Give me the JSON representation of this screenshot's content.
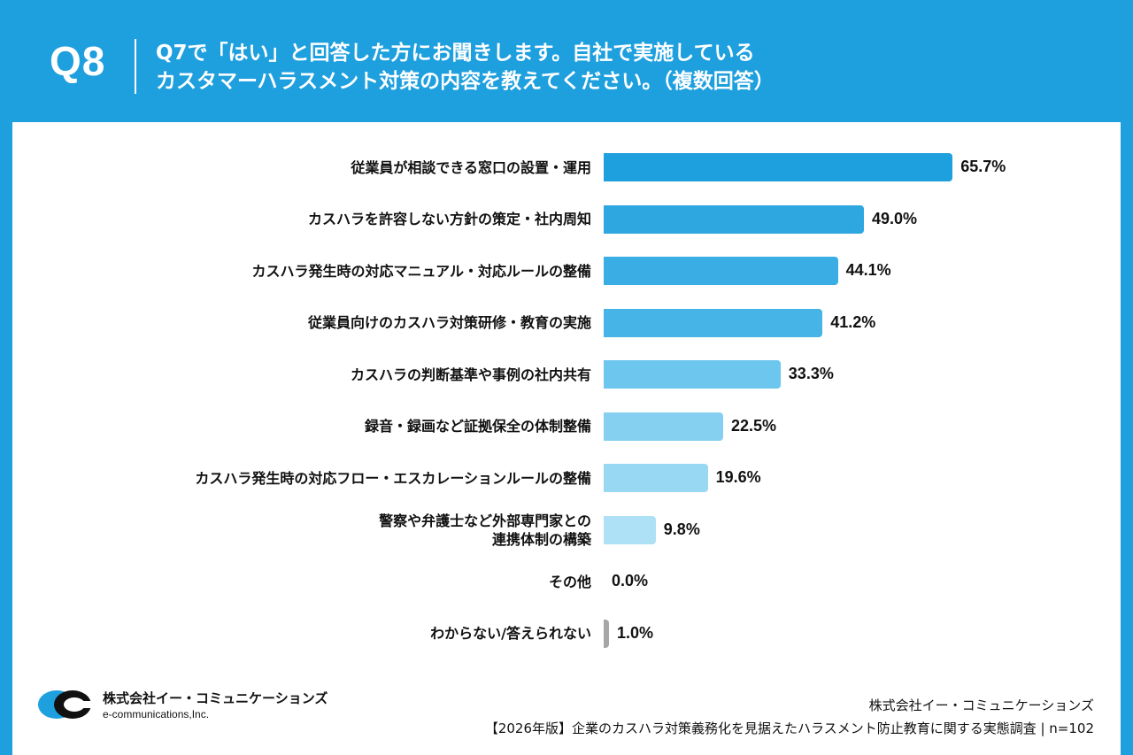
{
  "header": {
    "question_number": "Q8",
    "question_line1": "Q7で「はい」と回答した方にお聞きします。自社で実施している",
    "question_line2": "カスタマーハラスメント対策の内容を教えてください。（複数回答）"
  },
  "chart_data": {
    "type": "bar",
    "orientation": "horizontal",
    "categories": [
      "従業員が相談できる窓口の設置・運用",
      "カスハラを許容しない方針の策定・社内周知",
      "カスハラ発生時の対応マニュアル・対応ルールの整備",
      "従業員向けのカスハラ対策研修・教育の実施",
      "カスハラの判断基準や事例の社内共有",
      "録音・録画など証拠保全の体制整備",
      "カスハラ発生時の対応フロー・エスカレーションルールの整備",
      "警察や弁護士など外部専門家との\n連携体制の構築",
      "その他",
      "わからない/答えられない"
    ],
    "values": [
      65.7,
      49.0,
      44.1,
      41.2,
      33.3,
      22.5,
      19.6,
      9.8,
      0.0,
      1.0
    ],
    "value_labels": [
      "65.7%",
      "49.0%",
      "44.1%",
      "41.2%",
      "33.3%",
      "22.5%",
      "19.6%",
      "9.8%",
      "0.0%",
      "1.0%"
    ],
    "xlim": [
      0,
      100
    ],
    "colors": [
      "#1e9fde",
      "#2ea6e0",
      "#3aaee4",
      "#46b4e6",
      "#6cc6ee",
      "#85d0f0",
      "#99d8f3",
      "#aee1f5",
      "#b0e2f5",
      "#a6a6a6"
    ],
    "grid": false,
    "legend": "none"
  },
  "footer": {
    "logo_name": "株式会社イー・コミュニケーションズ",
    "logo_sub": "e-communications,Inc.",
    "source_company": "株式会社イー・コミュニケーションズ",
    "source_title": "【2026年版】企業のカスハラ対策義務化を見据えたハラスメント防止教育に関する実態調査 | n=102"
  },
  "colors": {
    "brand": "#1e9fde"
  }
}
